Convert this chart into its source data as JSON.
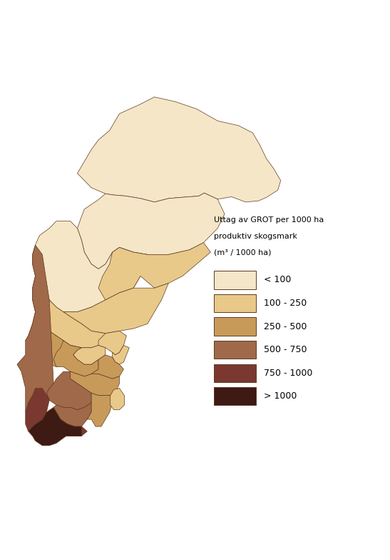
{
  "legend_title_line1": "Uttag av GROT per 1000 ha",
  "legend_title_line2": "produktiv skogsmark",
  "legend_title_line3": "(m³ / 1000 ha)",
  "legend_labels": [
    "< 100",
    "100 - 250",
    "250 - 500",
    "500 - 750",
    "750 - 1000",
    "> 1000"
  ],
  "legend_colors": [
    "#F5E6C8",
    "#E8C98A",
    "#C89A5A",
    "#A0694A",
    "#7A3830",
    "#3D1A14"
  ],
  "county_colors": {
    "Norrbottens": "#F5E6C8",
    "Vasterbottens": "#F5E6C8",
    "Jamtlands": "#F5E6C8",
    "Vasternorrlands": "#E8C98A",
    "Gavleborgs": "#E8C98A",
    "Dalarnas": "#E8C98A",
    "Varmlands": "#C89A5A",
    "Uppsala": "#E8C98A",
    "Vastmanlands": "#E8C98A",
    "Orebro": "#C89A5A",
    "Stockholms": "#E8C98A",
    "Sodermanlands": "#C89A5A",
    "Ostergotlands": "#C89A5A",
    "Jonkopings": "#A0694A",
    "Kronobergs": "#A0694A",
    "Kalmar": "#C89A5A",
    "Gotlands": "#E8C98A",
    "Blekinge": "#7A3830",
    "Skane": "#3D1A14",
    "Hallands": "#7A3830",
    "Vastra_Gotalands": "#A0694A"
  },
  "background_color": "#FFFFFF",
  "border_color": "#5C3A1E",
  "border_width": 0.5,
  "figsize": [
    5.47,
    7.84
  ],
  "dpi": 100
}
